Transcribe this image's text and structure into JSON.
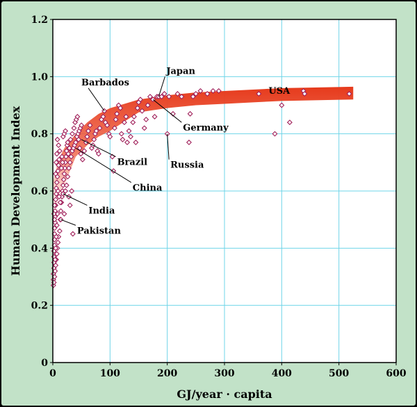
{
  "chart_data": {
    "type": "scatter",
    "xlabel": "GJ/year · capita",
    "ylabel": "Human Development Index",
    "xlim": [
      0,
      600
    ],
    "ylim": [
      0,
      1.2
    ],
    "x_ticks": [
      "0",
      "100",
      "200",
      "300",
      "400",
      "500",
      "600"
    ],
    "y_ticks": [
      "0",
      "0.2",
      "0.4",
      "0.6",
      "0.8",
      "1.0",
      "1.2"
    ],
    "grid": true,
    "trend_band": {
      "color": "#e63a1c",
      "description": "fitted saturation curve",
      "x": [
        0,
        10,
        20,
        40,
        60,
        80,
        100,
        150,
        200,
        250,
        300,
        350,
        400,
        450,
        525
      ],
      "y": [
        0.62,
        0.7,
        0.74,
        0.79,
        0.83,
        0.86,
        0.88,
        0.91,
        0.925,
        0.935,
        0.94,
        0.945,
        0.95,
        0.952,
        0.955
      ]
    },
    "annotations": [
      {
        "label": "Japan",
        "x": 185,
        "y": 0.93,
        "tx": 196,
        "ty": 1.0
      },
      {
        "label": "Barbados",
        "x": 90,
        "y": 0.88,
        "tx": 62,
        "ty": 0.96
      },
      {
        "label": "USA",
        "x": 360,
        "y": 0.94,
        "tx": 360,
        "ty": 0.95
      },
      {
        "label": "Germany",
        "x": 175,
        "y": 0.92,
        "tx": 225,
        "ty": 0.84
      },
      {
        "label": "Russia",
        "x": 200,
        "y": 0.8,
        "tx": 203,
        "ty": 0.71
      },
      {
        "label": "Brazil",
        "x": 50,
        "y": 0.78,
        "tx": 110,
        "ty": 0.72
      },
      {
        "label": "China",
        "x": 40,
        "y": 0.75,
        "tx": 137,
        "ty": 0.63
      },
      {
        "label": "India",
        "x": 18,
        "y": 0.59,
        "tx": 60,
        "ty": 0.55
      },
      {
        "label": "Pakistan",
        "x": 14,
        "y": 0.5,
        "tx": 40,
        "ty": 0.48
      }
    ],
    "points": [
      [
        1,
        0.27
      ],
      [
        1,
        0.29
      ],
      [
        1,
        0.31
      ],
      [
        2,
        0.33
      ],
      [
        2,
        0.35
      ],
      [
        2,
        0.37
      ],
      [
        2,
        0.39
      ],
      [
        3,
        0.41
      ],
      [
        3,
        0.43
      ],
      [
        3,
        0.45
      ],
      [
        3,
        0.47
      ],
      [
        4,
        0.49
      ],
      [
        4,
        0.51
      ],
      [
        4,
        0.53
      ],
      [
        5,
        0.55
      ],
      [
        5,
        0.57
      ],
      [
        6,
        0.59
      ],
      [
        6,
        0.61
      ],
      [
        7,
        0.63
      ],
      [
        8,
        0.65
      ],
      [
        9,
        0.67
      ],
      [
        10,
        0.69
      ],
      [
        11,
        0.71
      ],
      [
        2,
        0.28
      ],
      [
        3,
        0.3
      ],
      [
        4,
        0.32
      ],
      [
        5,
        0.34
      ],
      [
        6,
        0.36
      ],
      [
        7,
        0.38
      ],
      [
        8,
        0.4
      ],
      [
        9,
        0.42
      ],
      [
        10,
        0.44
      ],
      [
        4,
        0.36
      ],
      [
        5,
        0.4
      ],
      [
        6,
        0.44
      ],
      [
        7,
        0.48
      ],
      [
        8,
        0.52
      ],
      [
        3,
        0.5
      ],
      [
        2,
        0.52
      ],
      [
        3,
        0.55
      ],
      [
        12,
        0.46
      ],
      [
        13,
        0.5
      ],
      [
        14,
        0.53
      ],
      [
        15,
        0.56
      ],
      [
        16,
        0.58
      ],
      [
        17,
        0.6
      ],
      [
        18,
        0.62
      ],
      [
        19,
        0.64
      ],
      [
        20,
        0.66
      ],
      [
        21,
        0.68
      ],
      [
        22,
        0.7
      ],
      [
        23,
        0.72
      ],
      [
        24,
        0.74
      ],
      [
        25,
        0.76
      ],
      [
        26,
        0.77
      ],
      [
        14,
        0.5
      ],
      [
        18,
        0.59
      ],
      [
        20,
        0.52
      ],
      [
        22,
        0.6
      ],
      [
        24,
        0.62
      ],
      [
        26,
        0.65
      ],
      [
        28,
        0.68
      ],
      [
        30,
        0.7
      ],
      [
        32,
        0.72
      ],
      [
        34,
        0.74
      ],
      [
        36,
        0.75
      ],
      [
        38,
        0.76
      ],
      [
        40,
        0.77
      ],
      [
        42,
        0.79
      ],
      [
        44,
        0.8
      ],
      [
        46,
        0.81
      ],
      [
        48,
        0.82
      ],
      [
        50,
        0.83
      ],
      [
        35,
        0.45
      ],
      [
        30,
        0.55
      ],
      [
        33,
        0.6
      ],
      [
        28,
        0.58
      ],
      [
        27,
        0.73
      ],
      [
        29,
        0.75
      ],
      [
        31,
        0.78
      ],
      [
        34,
        0.8
      ],
      [
        37,
        0.82
      ],
      [
        39,
        0.84
      ],
      [
        41,
        0.85
      ],
      [
        43,
        0.86
      ],
      [
        45,
        0.78
      ],
      [
        47,
        0.75
      ],
      [
        49,
        0.73
      ],
      [
        52,
        0.71
      ],
      [
        55,
        0.74
      ],
      [
        58,
        0.77
      ],
      [
        60,
        0.79
      ],
      [
        62,
        0.81
      ],
      [
        65,
        0.83
      ],
      [
        68,
        0.75
      ],
      [
        70,
        0.76
      ],
      [
        72,
        0.78
      ],
      [
        74,
        0.8
      ],
      [
        76,
        0.81
      ],
      [
        78,
        0.74
      ],
      [
        80,
        0.73
      ],
      [
        82,
        0.82
      ],
      [
        85,
        0.85
      ],
      [
        88,
        0.86
      ],
      [
        90,
        0.88
      ],
      [
        92,
        0.84
      ],
      [
        95,
        0.83
      ],
      [
        98,
        0.8
      ],
      [
        100,
        0.79
      ],
      [
        104,
        0.72
      ],
      [
        106,
        0.67
      ],
      [
        108,
        0.82
      ],
      [
        110,
        0.85
      ],
      [
        112,
        0.87
      ],
      [
        115,
        0.9
      ],
      [
        118,
        0.89
      ],
      [
        120,
        0.8
      ],
      [
        122,
        0.78
      ],
      [
        125,
        0.84
      ],
      [
        128,
        0.86
      ],
      [
        130,
        0.77
      ],
      [
        133,
        0.81
      ],
      [
        136,
        0.79
      ],
      [
        140,
        0.84
      ],
      [
        142,
        0.86
      ],
      [
        145,
        0.77
      ],
      [
        148,
        0.89
      ],
      [
        150,
        0.91
      ],
      [
        153,
        0.92
      ],
      [
        156,
        0.88
      ],
      [
        160,
        0.82
      ],
      [
        163,
        0.85
      ],
      [
        166,
        0.9
      ],
      [
        170,
        0.93
      ],
      [
        175,
        0.92
      ],
      [
        178,
        0.86
      ],
      [
        182,
        0.93
      ],
      [
        185,
        0.93
      ],
      [
        190,
        0.93
      ],
      [
        195,
        0.94
      ],
      [
        200,
        0.8
      ],
      [
        203,
        0.93
      ],
      [
        210,
        0.87
      ],
      [
        218,
        0.94
      ],
      [
        225,
        0.93
      ],
      [
        238,
        0.77
      ],
      [
        240,
        0.87
      ],
      [
        245,
        0.93
      ],
      [
        250,
        0.94
      ],
      [
        258,
        0.95
      ],
      [
        270,
        0.94
      ],
      [
        280,
        0.95
      ],
      [
        290,
        0.95
      ],
      [
        360,
        0.94
      ],
      [
        388,
        0.8
      ],
      [
        400,
        0.9
      ],
      [
        414,
        0.84
      ],
      [
        438,
        0.95
      ],
      [
        440,
        0.94
      ],
      [
        518,
        0.94
      ],
      [
        8,
        0.78
      ],
      [
        10,
        0.76
      ],
      [
        12,
        0.74
      ],
      [
        16,
        0.72
      ],
      [
        18,
        0.79
      ],
      [
        20,
        0.8
      ],
      [
        22,
        0.81
      ],
      [
        6,
        0.7
      ],
      [
        5,
        0.66
      ],
      [
        7,
        0.73
      ],
      [
        9,
        0.6
      ],
      [
        11,
        0.58
      ],
      [
        13,
        0.56
      ],
      [
        15,
        0.68
      ],
      [
        17,
        0.7
      ]
    ]
  }
}
